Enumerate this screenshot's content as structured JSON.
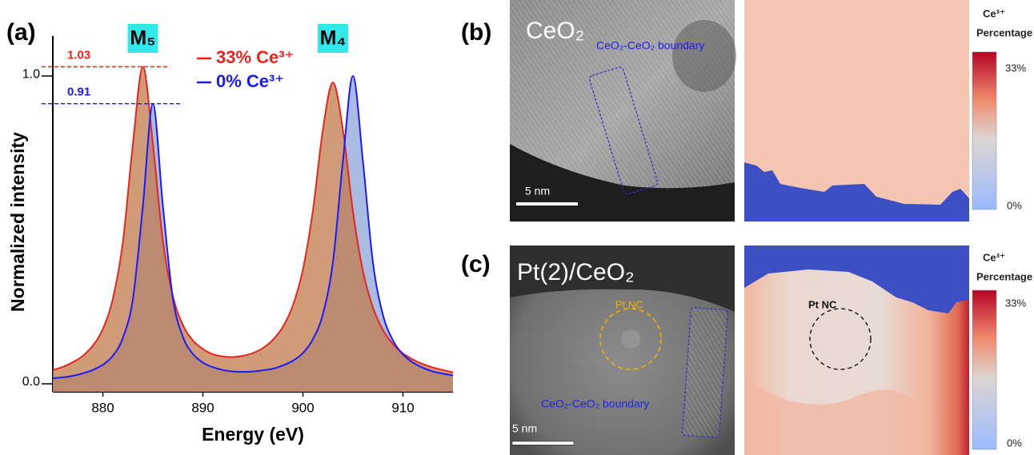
{
  "panels": {
    "a": "(a)",
    "b": "(b)",
    "c": "(c)"
  },
  "chart_data": {
    "type": "line",
    "xlabel": "Energy (eV)",
    "ylabel": "Normalized intensity",
    "x": [
      875,
      876,
      877,
      878,
      879,
      880,
      881,
      882,
      883,
      884,
      885,
      886,
      887,
      888,
      889,
      890,
      891,
      892,
      893,
      894,
      895,
      896,
      897,
      898,
      899,
      900,
      901,
      902,
      903,
      904,
      905,
      906,
      907,
      908,
      909,
      910,
      911,
      912,
      913,
      914,
      915
    ],
    "series": [
      {
        "name": "33% Ce³⁺",
        "color": "#e8241c",
        "fill": "#c07a4a",
        "values": [
          0.045,
          0.055,
          0.07,
          0.091,
          0.124,
          0.178,
          0.276,
          0.459,
          0.777,
          1.03,
          0.78,
          0.465,
          0.285,
          0.191,
          0.141,
          0.113,
          0.096,
          0.089,
          0.087,
          0.091,
          0.1,
          0.116,
          0.143,
          0.185,
          0.255,
          0.371,
          0.563,
          0.826,
          0.979,
          0.824,
          0.56,
          0.366,
          0.248,
          0.175,
          0.129,
          0.099,
          0.079,
          0.064,
          0.053,
          0.045,
          0.037
        ]
      },
      {
        "name": "0% Ce³⁺",
        "color": "#1a1aff",
        "fill": "#8fa6d8",
        "values": [
          0.018,
          0.021,
          0.026,
          0.034,
          0.045,
          0.062,
          0.091,
          0.149,
          0.275,
          0.577,
          0.91,
          0.579,
          0.278,
          0.153,
          0.097,
          0.069,
          0.054,
          0.045,
          0.04,
          0.039,
          0.04,
          0.044,
          0.049,
          0.06,
          0.075,
          0.1,
          0.145,
          0.227,
          0.395,
          0.724,
          1.0,
          0.723,
          0.394,
          0.224,
          0.141,
          0.096,
          0.069,
          0.052,
          0.04,
          0.033,
          0.027
        ]
      }
    ],
    "xlim": [
      875,
      915
    ],
    "xticks": [
      880,
      890,
      900,
      910
    ],
    "ylim": [
      -0.026,
      1.13
    ],
    "yticks": [
      {
        "value": 0,
        "label": "0.0"
      },
      {
        "value": 1,
        "label": "1.0"
      }
    ],
    "hlines": [
      {
        "value": 1.03,
        "color": "#e8241c"
      },
      {
        "value": 0.91,
        "color": "#1a1aff"
      }
    ],
    "peak_labels": [
      "M₅",
      "M₄"
    ],
    "legend": "upper center"
  },
  "panel_b": {
    "image_label": "CeO₂",
    "boundary_label": "CeO₂-CeO₂ boundary",
    "scale_bar": "5 nm",
    "colorbar": {
      "title": [
        "Ce³⁺",
        "Percentage"
      ],
      "max": "33%",
      "min": "0%"
    }
  },
  "panel_c": {
    "image_label": "Pt(2)/CeO₂",
    "nc_label": "Pt NC",
    "boundary_label": "CeO₂-CeO₂ boundary",
    "scale_bar": "5 nm",
    "map_nc_label": "Pt NC",
    "colorbar": {
      "title": [
        "Ce³⁺",
        "Percentage"
      ],
      "max": "33%",
      "min": "0%"
    }
  }
}
